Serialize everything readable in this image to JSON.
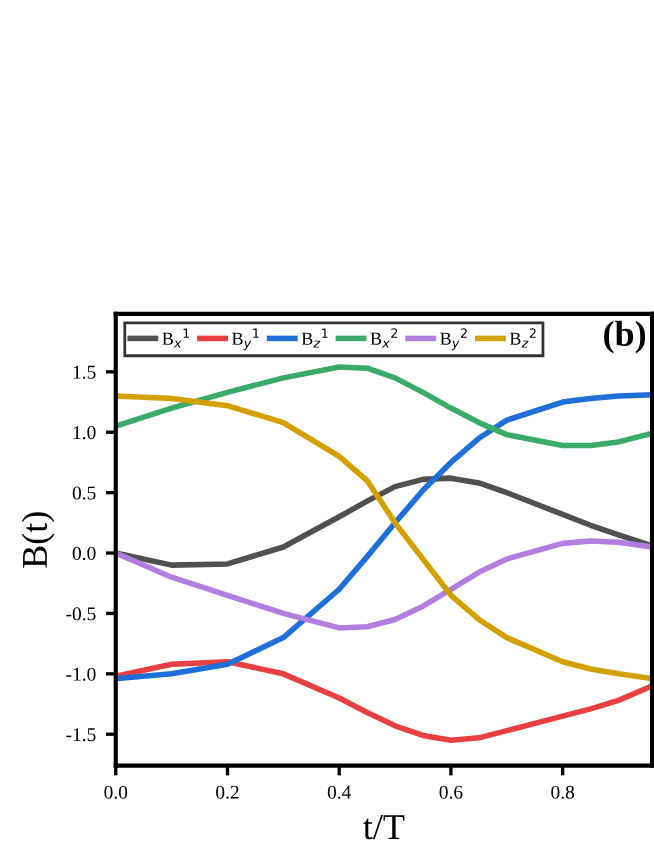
{
  "chart_data": {
    "type": "line",
    "xlabel": "t/T",
    "ylabel": "B(t)",
    "annotations": [
      "(b)"
    ],
    "xlim": [
      0,
      0.96
    ],
    "ylim": [
      -1.76,
      1.98
    ],
    "xticks": [
      {
        "value": 0,
        "label": "0.0"
      },
      0.2,
      0.4,
      0.6,
      0.8
    ],
    "yticks": [
      -1.5,
      {
        "value": -1.0,
        "label": "-1.0"
      },
      -0.5,
      {
        "value": 0,
        "label": "0.0"
      },
      0.5,
      {
        "value": 1.0,
        "label": "1.0"
      },
      1.5
    ],
    "grid": false,
    "legend": "top",
    "marker": "none",
    "line_style": "solid",
    "x": [
      0,
      0.1,
      0.2,
      0.3,
      0.4,
      0.45,
      0.5,
      0.55,
      0.6,
      0.65,
      0.7,
      0.8,
      0.85,
      0.9,
      0.96
    ],
    "series": [
      {
        "name": "B$_{x}$$^{1}$",
        "color": "#505050",
        "values": [
          0,
          -0.1,
          -0.09,
          0.05,
          0.3,
          0.43,
          0.55,
          0.61,
          0.62,
          0.58,
          0.5,
          0.32,
          0.23,
          0.15,
          0.06
        ]
      },
      {
        "name": "B$_{y}$$^{1}$",
        "color": "#e84040",
        "values": [
          -1.02,
          -0.92,
          -0.9,
          -1.0,
          -1.2,
          -1.32,
          -1.43,
          -1.51,
          -1.55,
          -1.53,
          -1.47,
          -1.35,
          -1.29,
          -1.22,
          -1.1
        ]
      },
      {
        "name": "B$_{z}$$^{1}$",
        "color": "#1f6fdb",
        "values": [
          -1.04,
          -1.0,
          -0.92,
          -0.7,
          -0.3,
          -0.03,
          0.25,
          0.52,
          0.75,
          0.95,
          1.1,
          1.25,
          1.28,
          1.3,
          1.31
        ]
      },
      {
        "name": "B$_{x}$$^{2}$",
        "color": "#3aaa6a",
        "values": [
          1.05,
          1.2,
          1.33,
          1.45,
          1.54,
          1.53,
          1.45,
          1.33,
          1.2,
          1.08,
          0.98,
          0.89,
          0.89,
          0.92,
          0.99
        ]
      },
      {
        "name": "B$_{y}$$^{2}$",
        "color": "#b07fe0",
        "values": [
          0,
          -0.2,
          -0.35,
          -0.5,
          -0.62,
          -0.61,
          -0.55,
          -0.44,
          -0.3,
          -0.16,
          -0.05,
          0.08,
          0.1,
          0.09,
          0.05
        ]
      },
      {
        "name": "B$_{z}$$^{2}$",
        "color": "#d4a000",
        "values": [
          1.3,
          1.28,
          1.22,
          1.08,
          0.8,
          0.6,
          0.25,
          -0.05,
          -0.35,
          -0.55,
          -0.7,
          -0.9,
          -0.96,
          -1.0,
          -1.04
        ]
      }
    ]
  }
}
